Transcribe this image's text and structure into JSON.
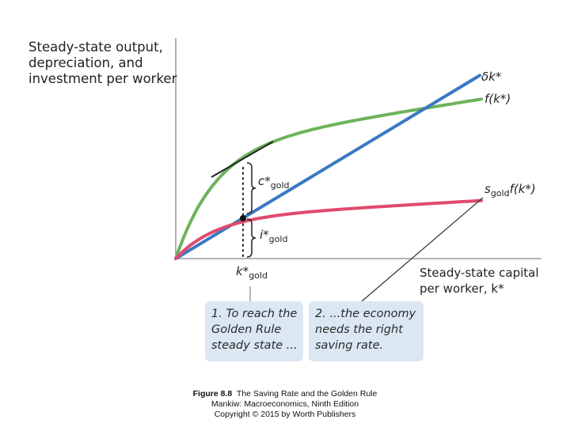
{
  "chart_data": {
    "type": "line",
    "title": "",
    "ylabel_lines": [
      "Steady-state output,",
      "depreciation, and",
      "investment per worker"
    ],
    "xlabel_lines": [
      "Steady-state capital",
      "per worker, k*"
    ],
    "series": [
      {
        "name": "f(k*)",
        "color": "#6db35a"
      },
      {
        "name": "δk*",
        "color": "#3b78c4"
      },
      {
        "name": "s_gold f(k*)",
        "color": "#e04a6e"
      }
    ],
    "tick_label": {
      "main": "k*",
      "sub": "gold"
    },
    "annotations": {
      "c_gold": {
        "main": "c*",
        "sub": "gold"
      },
      "i_gold": {
        "main": "i*",
        "sub": "gold"
      }
    },
    "curve_labels": {
      "depreciation": "δk*",
      "output": "f(k*)",
      "saving_main": "s",
      "saving_sub": "gold",
      "saving_rest": "f(k*)"
    }
  },
  "callouts": [
    {
      "lines": [
        "1. To reach the",
        "Golden Rule",
        "steady state ..."
      ]
    },
    {
      "lines": [
        "2. ...the economy",
        "needs the right",
        "saving rate."
      ]
    }
  ],
  "caption": {
    "figure": "Figure 8.8",
    "title": "The Saving Rate and the Golden Rule",
    "line2": "Mankiw: Macroeconomics, Ninth Edition",
    "line3": "Copyright © 2015 by Worth Publishers"
  }
}
